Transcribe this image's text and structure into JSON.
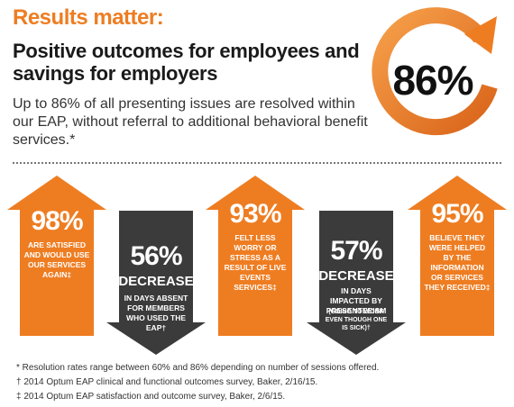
{
  "eyebrow": "Results matter:",
  "headline": "Positive outcomes for employees and savings for employers",
  "subtext": "Up to 86% of all presenting issues are resolved within our EAP, without referral to additional behavioral benefit services.*",
  "badge": {
    "value": "86%",
    "icon": "circular-arrow-icon"
  },
  "stats": [
    {
      "value": "98%",
      "direction": "up",
      "text": "Are satisfied and would use our services again‡"
    },
    {
      "value": "56%",
      "direction": "down",
      "heading": "DECREASE",
      "text": "in days absent for members who used the EAP†"
    },
    {
      "value": "93%",
      "direction": "up",
      "text": "Felt less worry or stress as a result of live events services‡"
    },
    {
      "value": "57%",
      "direction": "down",
      "heading": "DECREASE",
      "text": "in days impacted by presenteeism",
      "note": "(going to work even though one is sick)†"
    },
    {
      "value": "95%",
      "direction": "up",
      "text": "Believe they were helped by the information or services they received‡"
    }
  ],
  "footnotes": [
    "* Resolution rates range between 60% and 86% depending on number of sessions offered.",
    "† 2014 Optum EAP clinical and functional outcomes survey, Baker, 2/16/15.",
    "‡ 2014 Optum EAP satisfaction and outcome survey, Baker, 2/6/15."
  ],
  "colors": {
    "orange": "#ee7d22",
    "orange_dark": "#d9641a",
    "dark_gray": "#3b3b3b"
  }
}
